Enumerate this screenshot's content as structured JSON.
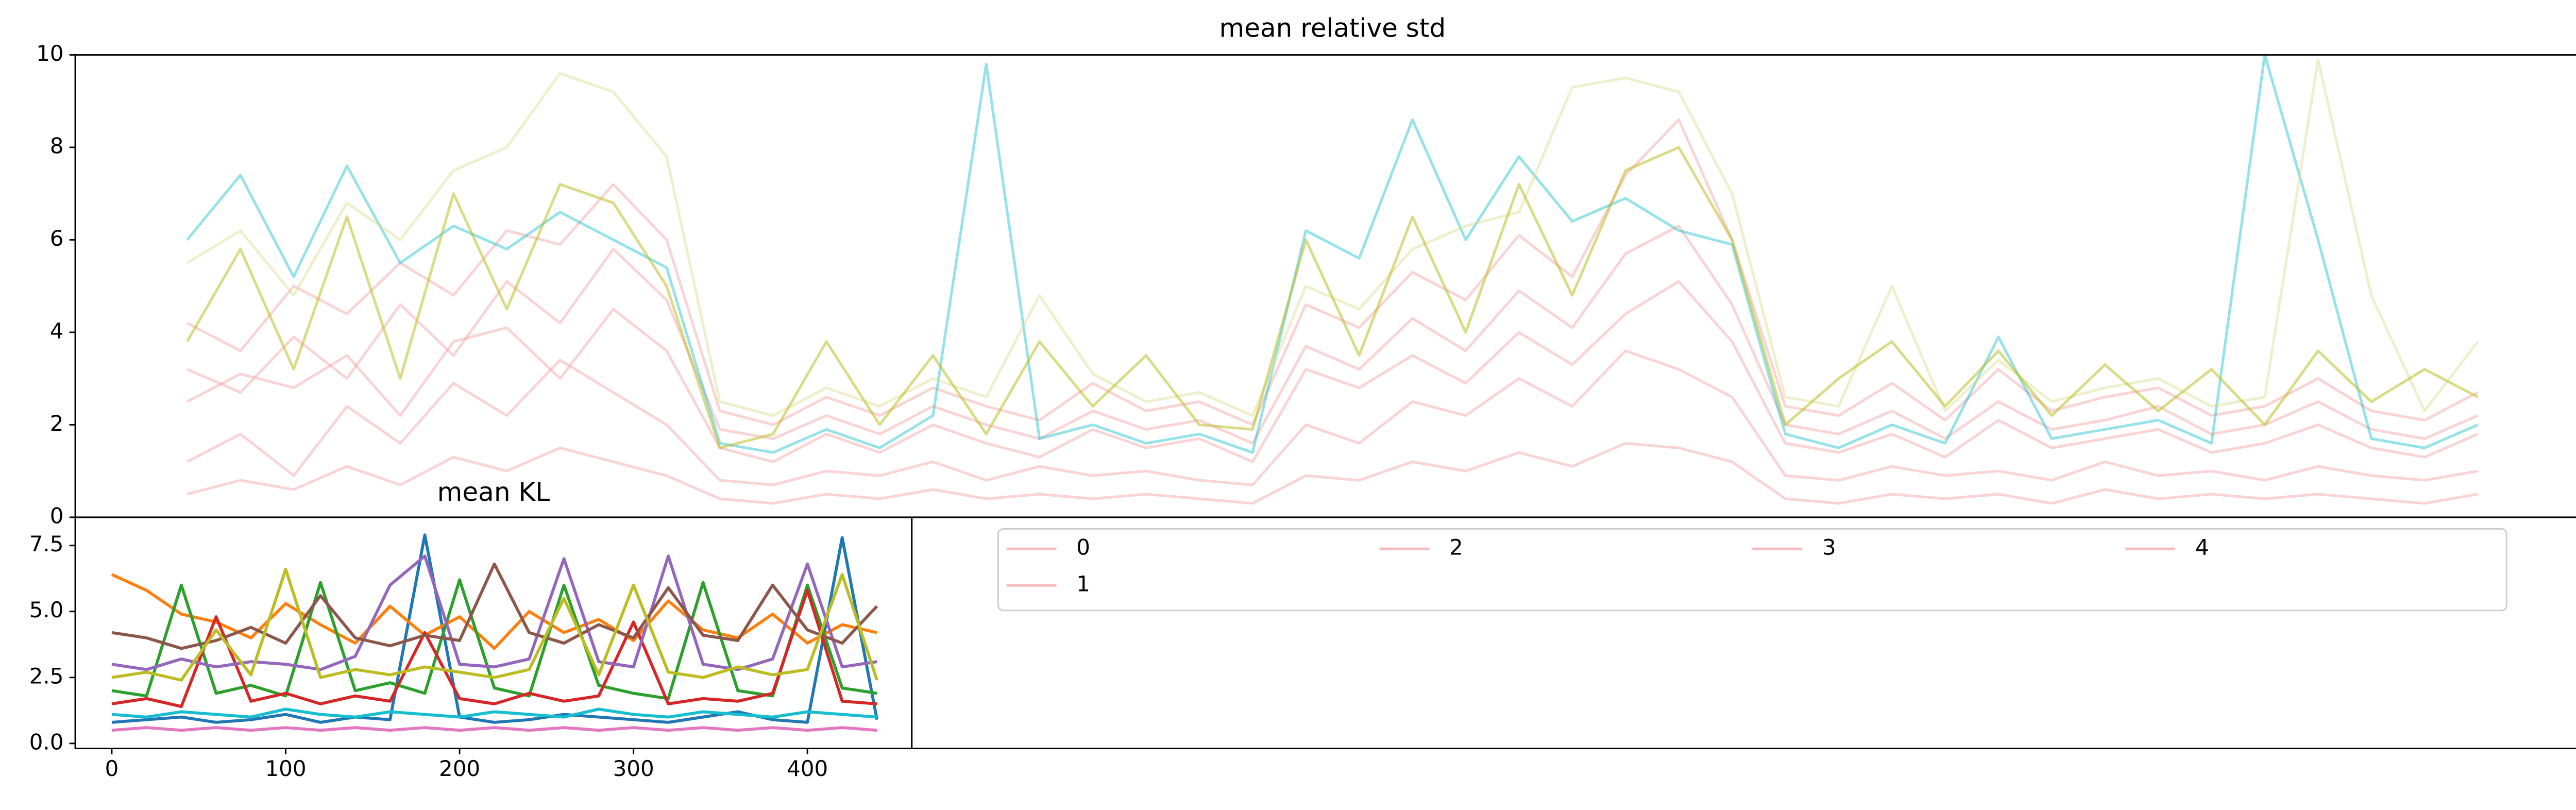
{
  "chart_data": [
    {
      "type": "line",
      "title": "mean relative std",
      "xlim": [
        -2.1,
        45.1
      ],
      "ylim": [
        0,
        10
      ],
      "yticks": [
        0,
        2,
        4,
        6,
        8,
        10
      ],
      "alpha": 0.2,
      "legend": {
        "loc": "upper center",
        "ncol": 4
      },
      "series": [
        {
          "name": "0",
          "color": "#f4a0a0",
          "values": [
            2.5,
            3.1,
            2.8,
            3.5,
            2.2,
            3.8,
            4.1,
            3.0,
            4.5,
            3.6,
            1.5,
            1.2,
            1.8,
            1.4,
            2.0,
            1.6,
            1.3,
            1.9,
            1.5,
            1.7,
            1.2,
            3.2,
            2.8,
            3.5,
            2.9,
            4.0,
            3.3,
            4.4,
            5.1,
            3.8,
            1.6,
            1.4,
            1.8,
            1.3,
            2.1,
            1.5,
            1.7,
            1.9,
            1.4,
            1.6,
            2.0,
            1.5,
            1.3,
            1.8
          ]
        },
        {
          "name": "1",
          "color": "#f4a0a0",
          "values": [
            1.2,
            1.8,
            0.9,
            2.4,
            1.6,
            2.9,
            2.2,
            3.4,
            2.7,
            2.0,
            0.8,
            0.7,
            1.0,
            0.9,
            1.2,
            0.8,
            1.1,
            0.9,
            1.0,
            0.8,
            0.7,
            2.0,
            1.6,
            2.5,
            2.2,
            3.0,
            2.4,
            3.6,
            3.2,
            2.6,
            0.9,
            0.8,
            1.1,
            0.9,
            1.0,
            0.8,
            1.2,
            0.9,
            1.0,
            0.8,
            1.1,
            0.9,
            0.8,
            1.0
          ]
        },
        {
          "name": "2",
          "color": "#f4a0a0",
          "values": [
            4.2,
            3.6,
            5.0,
            4.4,
            5.5,
            4.8,
            6.2,
            5.9,
            7.2,
            6.0,
            2.3,
            2.0,
            2.6,
            2.2,
            2.8,
            2.4,
            2.1,
            2.9,
            2.3,
            2.5,
            2.0,
            4.6,
            4.1,
            5.3,
            4.7,
            6.1,
            5.2,
            7.4,
            8.6,
            6.0,
            2.4,
            2.2,
            2.9,
            2.1,
            3.2,
            2.3,
            2.6,
            2.8,
            2.2,
            2.4,
            3.0,
            2.3,
            2.1,
            2.7
          ]
        },
        {
          "name": "3",
          "color": "#f4a0a0",
          "values": [
            0.5,
            0.8,
            0.6,
            1.1,
            0.7,
            1.3,
            1.0,
            1.5,
            1.2,
            0.9,
            0.4,
            0.3,
            0.5,
            0.4,
            0.6,
            0.4,
            0.5,
            0.4,
            0.5,
            0.4,
            0.3,
            0.9,
            0.8,
            1.2,
            1.0,
            1.4,
            1.1,
            1.6,
            1.5,
            1.2,
            0.4,
            0.3,
            0.5,
            0.4,
            0.5,
            0.3,
            0.6,
            0.4,
            0.5,
            0.4,
            0.5,
            0.4,
            0.3,
            0.5
          ]
        },
        {
          "name": "4",
          "color": "#f4a0a0",
          "values": [
            3.2,
            2.7,
            3.9,
            3.0,
            4.6,
            3.5,
            5.1,
            4.2,
            5.8,
            4.7,
            1.9,
            1.7,
            2.2,
            1.8,
            2.4,
            2.0,
            1.7,
            2.3,
            1.9,
            2.1,
            1.6,
            3.7,
            3.2,
            4.3,
            3.6,
            4.9,
            4.1,
            5.7,
            6.3,
            4.6,
            2.0,
            1.8,
            2.3,
            1.7,
            2.5,
            1.9,
            2.1,
            2.4,
            1.8,
            2.0,
            2.5,
            1.9,
            1.7,
            2.2
          ]
        },
        {
          "name": null,
          "color": "#17becf",
          "values": [
            6.0,
            7.4,
            5.2,
            7.6,
            5.5,
            6.3,
            5.8,
            6.6,
            6.0,
            5.4,
            1.6,
            1.4,
            1.9,
            1.5,
            2.2,
            9.8,
            1.7,
            2.0,
            1.6,
            1.8,
            1.4,
            6.2,
            5.6,
            8.6,
            6.0,
            7.8,
            6.4,
            6.9,
            6.2,
            5.9,
            1.8,
            1.5,
            2.0,
            1.6,
            3.9,
            1.7,
            1.9,
            2.1,
            1.6,
            10.0,
            6.0,
            1.7,
            1.5,
            2.0
          ]
        },
        {
          "name": null,
          "color": "#dbdb8d",
          "values": [
            5.5,
            6.2,
            4.8,
            6.8,
            6.0,
            7.5,
            8.0,
            9.6,
            9.2,
            7.8,
            2.5,
            2.2,
            2.8,
            2.4,
            3.0,
            2.6,
            4.8,
            3.1,
            2.5,
            2.7,
            2.2,
            5.0,
            4.5,
            5.8,
            6.3,
            6.6,
            9.3,
            9.5,
            9.2,
            7.0,
            2.6,
            2.4,
            5.0,
            2.3,
            3.4,
            2.5,
            2.8,
            3.0,
            2.4,
            2.6,
            9.9,
            4.8,
            2.3,
            3.8
          ]
        },
        {
          "name": null,
          "color": "#bcbd22",
          "values": [
            3.8,
            5.8,
            3.2,
            6.5,
            3.0,
            7.0,
            4.5,
            7.2,
            6.8,
            5.0,
            1.5,
            1.8,
            3.8,
            2.0,
            3.5,
            1.8,
            3.8,
            2.4,
            3.5,
            2.0,
            1.9,
            6.0,
            3.5,
            6.5,
            4.0,
            7.2,
            4.8,
            7.5,
            8.0,
            6.0,
            2.0,
            3.0,
            3.8,
            2.4,
            3.6,
            2.2,
            3.3,
            2.3,
            3.2,
            2.0,
            3.6,
            2.5,
            3.2,
            2.6
          ]
        }
      ]
    },
    {
      "type": "line",
      "title": "mean KL",
      "x": [
        0,
        20,
        40,
        60,
        80,
        100,
        120,
        140,
        160,
        180,
        200,
        220,
        240,
        260,
        280,
        300,
        320,
        340,
        360,
        380,
        400,
        420,
        440
      ],
      "xlim": [
        -21,
        460
      ],
      "xticks": [
        0,
        100,
        200,
        300,
        400
      ],
      "ylim": [
        -0.19,
        8.57
      ],
      "yticks": [
        {
          "value": 0,
          "label": "0.0"
        },
        {
          "value": 2.5,
          "label": "2.5"
        },
        {
          "value": 5,
          "label": "5.0"
        },
        {
          "value": 7.5,
          "label": "7.5"
        }
      ],
      "series": [
        {
          "color": "#1f77b4",
          "values": [
            0.8,
            0.9,
            1.0,
            0.8,
            0.9,
            1.1,
            0.8,
            1.0,
            0.9,
            7.9,
            1.0,
            0.8,
            0.9,
            1.1,
            1.0,
            0.9,
            0.8,
            1.0,
            1.2,
            0.9,
            0.8,
            7.8,
            0.9
          ]
        },
        {
          "color": "#ff7f0e",
          "values": [
            6.4,
            5.8,
            4.9,
            4.6,
            4.0,
            5.3,
            4.5,
            3.8,
            5.2,
            4.1,
            4.8,
            3.6,
            5.0,
            4.2,
            4.7,
            3.9,
            5.4,
            4.3,
            4.0,
            4.9,
            3.8,
            4.5,
            4.2
          ]
        },
        {
          "color": "#2ca02c",
          "values": [
            2.0,
            1.8,
            6.0,
            1.9,
            2.2,
            1.8,
            6.1,
            2.0,
            2.3,
            1.9,
            6.2,
            2.1,
            1.8,
            6.0,
            2.2,
            1.9,
            1.7,
            6.1,
            2.0,
            1.8,
            6.0,
            2.1,
            1.9
          ]
        },
        {
          "color": "#d62728",
          "values": [
            1.5,
            1.7,
            1.4,
            4.8,
            1.6,
            1.9,
            1.5,
            1.8,
            1.6,
            4.2,
            1.7,
            1.5,
            1.9,
            1.6,
            1.8,
            4.6,
            1.5,
            1.7,
            1.6,
            1.9,
            5.8,
            1.6,
            1.5
          ]
        },
        {
          "color": "#9467bd",
          "values": [
            3.0,
            2.8,
            3.2,
            2.9,
            3.1,
            3.0,
            2.8,
            3.3,
            6.0,
            7.1,
            3.0,
            2.9,
            3.2,
            7.0,
            3.1,
            2.9,
            7.1,
            3.0,
            2.8,
            3.2,
            6.8,
            2.9,
            3.1
          ]
        },
        {
          "color": "#8c564b",
          "values": [
            4.2,
            4.0,
            3.6,
            3.9,
            4.4,
            3.8,
            5.6,
            4.0,
            3.7,
            4.1,
            3.9,
            6.8,
            4.2,
            3.8,
            4.5,
            4.0,
            5.9,
            4.1,
            3.9,
            6.0,
            4.3,
            3.8,
            5.2
          ]
        },
        {
          "color": "#bcbd22",
          "values": [
            2.5,
            2.7,
            2.4,
            4.3,
            2.6,
            6.6,
            2.5,
            2.8,
            2.6,
            2.9,
            2.7,
            2.5,
            2.8,
            5.5,
            2.6,
            6.0,
            2.7,
            2.5,
            2.9,
            2.6,
            2.8,
            6.4,
            2.4
          ]
        },
        {
          "color": "#17becf",
          "values": [
            1.1,
            1.0,
            1.2,
            1.1,
            1.0,
            1.3,
            1.1,
            1.0,
            1.2,
            1.1,
            1.0,
            1.2,
            1.1,
            1.0,
            1.3,
            1.1,
            1.0,
            1.2,
            1.1,
            1.0,
            1.2,
            1.1,
            1.0
          ]
        },
        {
          "color": "#e377c2",
          "values": [
            0.5,
            0.6,
            0.5,
            0.6,
            0.5,
            0.6,
            0.5,
            0.6,
            0.5,
            0.6,
            0.5,
            0.6,
            0.5,
            0.6,
            0.5,
            0.6,
            0.5,
            0.6,
            0.5,
            0.6,
            0.5,
            0.6,
            0.5
          ]
        }
      ]
    }
  ]
}
